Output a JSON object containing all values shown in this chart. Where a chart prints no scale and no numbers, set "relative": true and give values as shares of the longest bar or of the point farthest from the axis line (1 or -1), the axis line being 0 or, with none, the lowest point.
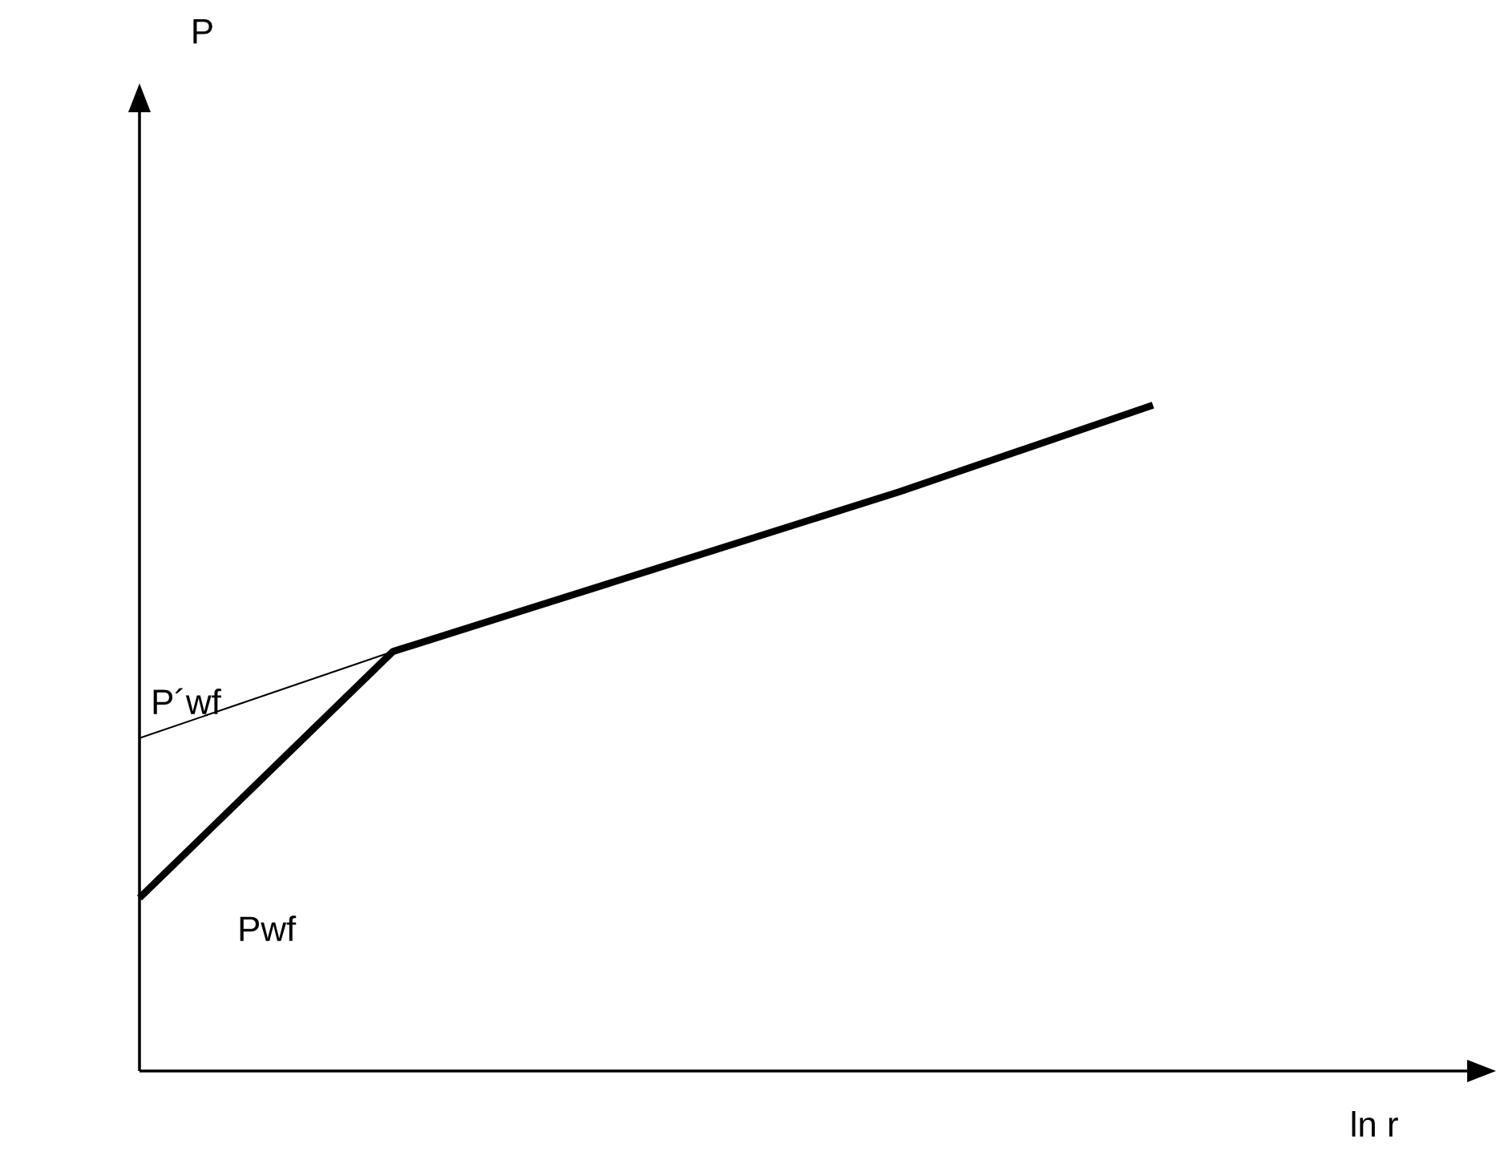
{
  "chart_data": {
    "type": "line",
    "relative": true,
    "xlabel": "ln r",
    "categories": [
      null,
      null,
      null,
      null,
      null
    ],
    "series": [
      {
        "color": "#000000",
        "values": [
          0.26,
          0.63,
          0.75,
          0.87,
          1
        ]
      },
      {
        "color": "#000000",
        "values": [
          0.5,
          0.63,
          null,
          null,
          null
        ]
      }
    ],
    "annotations": [
      "P´wf",
      "Pwf",
      "P"
    ]
  }
}
